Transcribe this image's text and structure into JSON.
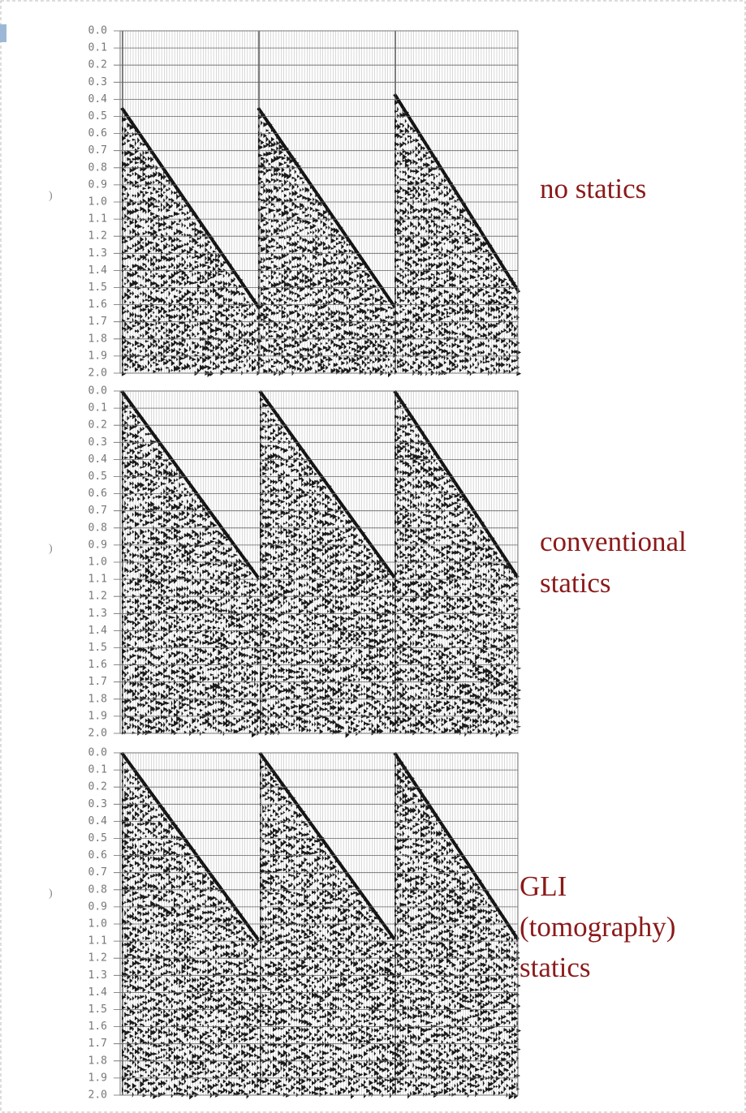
{
  "panels": [
    {
      "ticks": [
        "0.0",
        "0.1",
        "0.2",
        "0.3",
        "0.4",
        "0.5",
        "0.6",
        "0.7",
        "0.8",
        "0.9",
        "1.0",
        "1.1",
        "1.2",
        "1.3",
        "1.4",
        "1.5",
        "1.6",
        "1.7",
        "1.8",
        "1.9",
        "2.0"
      ],
      "label": [
        "no statics"
      ],
      "margin_mark": ")"
    },
    {
      "ticks": [
        "0.0",
        "0.1",
        "0.2",
        "0.3",
        "0.4",
        "0.5",
        "0.6",
        "0.7",
        "0.8",
        "0.9",
        "1.0",
        "1.1",
        "1.2",
        "1.3",
        "1.4",
        "1.5",
        "1.6",
        "1.7",
        "1.8",
        "1.9",
        "2.0"
      ],
      "label": [
        "conventional",
        "statics"
      ],
      "margin_mark": ")"
    },
    {
      "ticks": [
        "0.0",
        "0.1",
        "0.2",
        "0.3",
        "0.4",
        "0.5",
        "0.6",
        "0.7",
        "0.8",
        "0.9",
        "1.0",
        "1.1",
        "1.2",
        "1.3",
        "1.4",
        "1.5",
        "1.6",
        "1.7",
        "1.8",
        "1.9",
        "2.0"
      ],
      "label": [
        "GLI",
        "(tomography)",
        "statics"
      ],
      "margin_mark": ")"
    }
  ]
}
